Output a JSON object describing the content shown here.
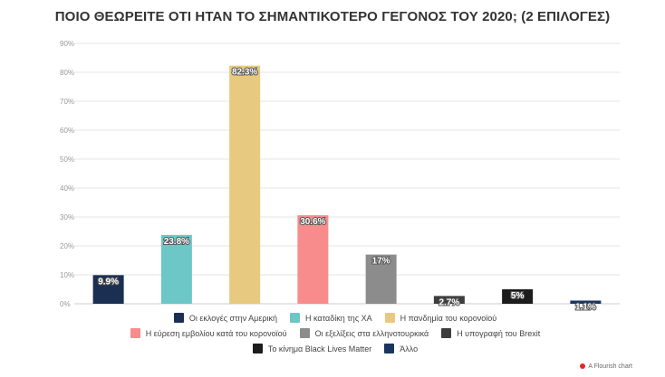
{
  "chart_data": {
    "type": "bar",
    "title": "ΠΟΙΟ ΘΕΩΡΕΙΤΕ ΟΤΙ ΗΤΑΝ ΤΟ ΣΗΜΑΝΤΙΚΟΤΕΡΟ ΓΕΓΟΝΟΣ ΤΟΥ 2020; (2 ΕΠΙΛΟΓΕΣ)",
    "categories": [
      "Οι εκλογές στην Αμερική",
      "Η καταδίκη της ΧΑ",
      "Η πανδημία του κορονοϊού",
      "Η εύρεση εμβολίου κατά του κορονοϊού",
      "Οι εξελίξεις στα ελληνοτουρκικά",
      "Η υπογραφή του Brexit",
      "Το κίνημα Black Lives Matter",
      "Άλλο"
    ],
    "values": [
      9.9,
      23.8,
      82.3,
      30.6,
      17,
      2.7,
      5,
      1.1
    ],
    "value_labels": [
      "9.9%",
      "23.8%",
      "82.3%",
      "30.6%",
      "17%",
      "2.7%",
      "5%",
      "1.1%"
    ],
    "colors": [
      "#1b2f52",
      "#6cc7c6",
      "#e7c97f",
      "#f88c8c",
      "#8c8c8c",
      "#3e3e3e",
      "#1c1c1c",
      "#1b3560"
    ],
    "ylim": [
      0,
      90
    ],
    "yticks": [
      0,
      10,
      20,
      30,
      40,
      50,
      60,
      70,
      80,
      90
    ],
    "ytick_labels": [
      "0%",
      "10%",
      "20%",
      "30%",
      "40%",
      "50%",
      "60%",
      "70%",
      "80%",
      "90%"
    ],
    "xlabel": "",
    "ylabel": "",
    "legend_position": "bottom"
  },
  "footer": {
    "text": "A Flourish chart"
  }
}
